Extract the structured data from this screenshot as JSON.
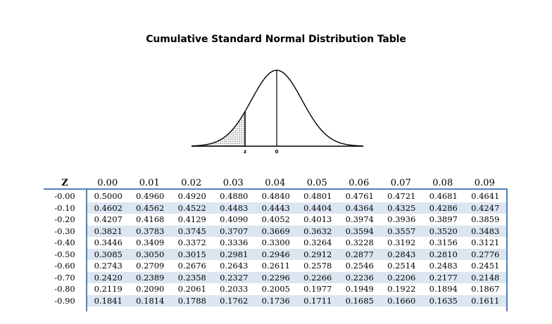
{
  "title": "Cumulative Standard Normal Distribution Table",
  "figure": {
    "label_z": "z",
    "label_zero": "0"
  },
  "table": {
    "z_header": "Z",
    "columns": [
      "0.00",
      "0.01",
      "0.02",
      "0.03",
      "0.04",
      "0.05",
      "0.06",
      "0.07",
      "0.08",
      "0.09"
    ],
    "rows": [
      {
        "z": "-0.00",
        "values": [
          "0.5000",
          "0.4960",
          "0.4920",
          "0.4880",
          "0.4840",
          "0.4801",
          "0.4761",
          "0.4721",
          "0.4681",
          "0.4641"
        ]
      },
      {
        "z": "-0.10",
        "values": [
          "0.4602",
          "0.4562",
          "0.4522",
          "0.4483",
          "0.4443",
          "0.4404",
          "0.4364",
          "0.4325",
          "0.4286",
          "0.4247"
        ]
      },
      {
        "z": "-0.20",
        "values": [
          "0.4207",
          "0.4168",
          "0.4129",
          "0.4090",
          "0.4052",
          "0.4013",
          "0.3974",
          "0.3936",
          "0.3897",
          "0.3859"
        ]
      },
      {
        "z": "-0.30",
        "values": [
          "0.3821",
          "0.3783",
          "0.3745",
          "0.3707",
          "0.3669",
          "0.3632",
          "0.3594",
          "0.3557",
          "0.3520",
          "0.3483"
        ]
      },
      {
        "z": "-0.40",
        "values": [
          "0.3446",
          "0.3409",
          "0.3372",
          "0.3336",
          "0.3300",
          "0.3264",
          "0.3228",
          "0.3192",
          "0.3156",
          "0.3121"
        ]
      },
      {
        "z": "-0.50",
        "values": [
          "0.3085",
          "0.3050",
          "0.3015",
          "0.2981",
          "0.2946",
          "0.2912",
          "0.2877",
          "0.2843",
          "0.2810",
          "0.2776"
        ]
      },
      {
        "z": "-0.60",
        "values": [
          "0.2743",
          "0.2709",
          "0.2676",
          "0.2643",
          "0.2611",
          "0.2578",
          "0.2546",
          "0.2514",
          "0.2483",
          "0.2451"
        ]
      },
      {
        "z": "-0.70",
        "values": [
          "0.2420",
          "0.2389",
          "0.2358",
          "0.2327",
          "0.2296",
          "0.2266",
          "0.2236",
          "0.2206",
          "0.2177",
          "0.2148"
        ]
      },
      {
        "z": "-0.80",
        "values": [
          "0.2119",
          "0.2090",
          "0.2061",
          "0.2033",
          "0.2005",
          "0.1977",
          "0.1949",
          "0.1922",
          "0.1894",
          "0.1867"
        ]
      },
      {
        "z": "-0.90",
        "values": [
          "0.1841",
          "0.1814",
          "0.1788",
          "0.1762",
          "0.1736",
          "0.1711",
          "0.1685",
          "0.1660",
          "0.1635",
          "0.1611"
        ]
      }
    ]
  },
  "colors": {
    "border": "#4f81bd",
    "band": "#dce6f1",
    "shade": "#bfbfbf"
  }
}
